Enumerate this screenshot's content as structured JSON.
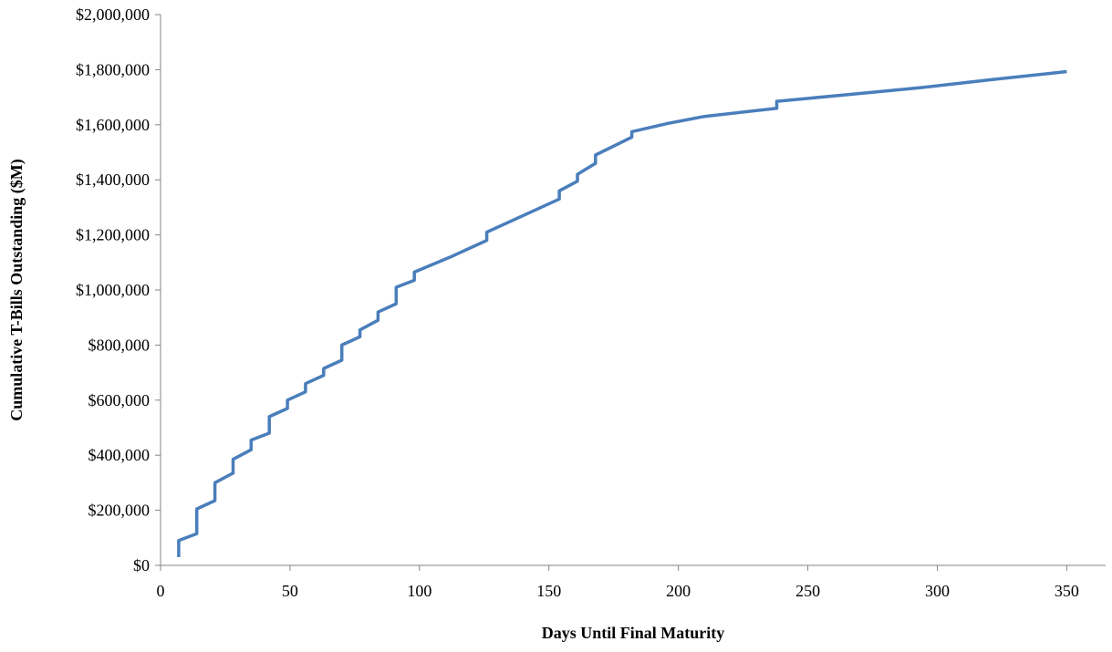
{
  "chart_data": {
    "type": "line",
    "title": "",
    "xlabel": "Days Until Final  Maturity",
    "ylabel": "Cumulative  T-Bills Outstanding  ($M)",
    "xlim": [
      0,
      365
    ],
    "ylim": [
      0,
      2000000
    ],
    "x_ticks": [
      0,
      50,
      100,
      150,
      200,
      250,
      300,
      350
    ],
    "x_tick_labels": [
      "0",
      "50",
      "100",
      "150",
      "200",
      "250",
      "300",
      "350"
    ],
    "y_ticks": [
      0,
      200000,
      400000,
      600000,
      800000,
      1000000,
      1200000,
      1400000,
      1600000,
      1800000,
      2000000
    ],
    "y_tick_labels": [
      "$0",
      "$200,000",
      "$400,000",
      "$600,000",
      "$800,000",
      "$1,000,000",
      "$1,200,000",
      "$1,400,000",
      "$1,600,000",
      "$1,800,000",
      "$2,000,000"
    ],
    "grid": false,
    "legend": "none",
    "series_color": "#4a7ebb",
    "series": [
      {
        "x": [
          7,
          7,
          14,
          14,
          21,
          21,
          28,
          28,
          35,
          35,
          42,
          42,
          49,
          49,
          56,
          56,
          63,
          63,
          70,
          70,
          77,
          77,
          84,
          84,
          91,
          91,
          98,
          98,
          112,
          126,
          126,
          154,
          154,
          161,
          161,
          168,
          168,
          182,
          182,
          196,
          210,
          238,
          238,
          266,
          294,
          322,
          350
        ],
        "y": [
          30000,
          90000,
          115000,
          205000,
          235000,
          300000,
          335000,
          385000,
          420000,
          455000,
          480000,
          540000,
          570000,
          600000,
          630000,
          660000,
          690000,
          715000,
          745000,
          800000,
          830000,
          855000,
          890000,
          920000,
          950000,
          1010000,
          1035000,
          1065000,
          1120000,
          1180000,
          1210000,
          1330000,
          1360000,
          1395000,
          1420000,
          1460000,
          1490000,
          1555000,
          1575000,
          1605000,
          1630000,
          1660000,
          1685000,
          1710000,
          1735000,
          1765000,
          1793000
        ]
      }
    ]
  }
}
